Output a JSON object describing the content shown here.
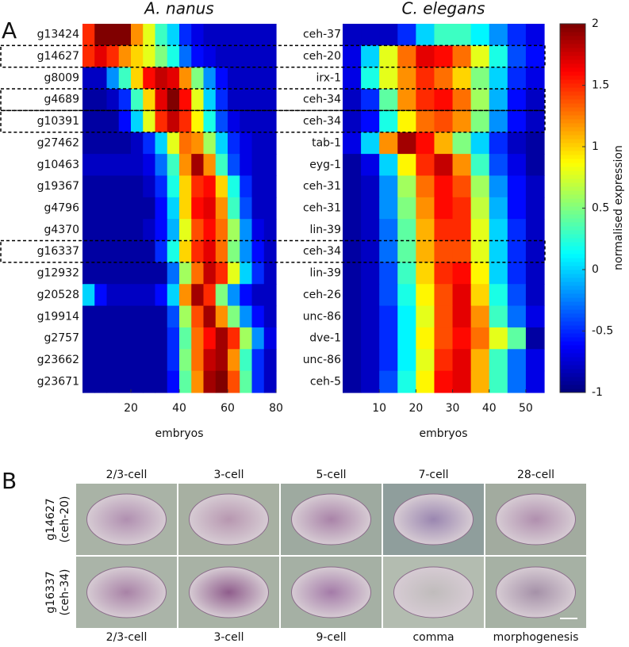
{
  "panel_labels": [
    "A",
    "B"
  ],
  "chart_data": [
    {
      "type": "heatmap",
      "title": "A. nanus",
      "xlabel": "embryos",
      "xlim": [
        0,
        80
      ],
      "xticks": [
        20,
        40,
        60,
        80
      ],
      "highlighted_rows": [
        1,
        3,
        4,
        10
      ],
      "rows": [
        "g13424",
        "g14627",
        "g8009",
        "g4689",
        "g10391",
        "g27462",
        "g10463",
        "g19367",
        "g4796",
        "g4370",
        "g16337",
        "g12932",
        "g20528",
        "g19914",
        "g2757",
        "g23662",
        "g23671"
      ],
      "values": [
        [
          1.5,
          2,
          2,
          2,
          1.2,
          0.8,
          0.3,
          0,
          -0.5,
          -0.7,
          -0.8,
          -0.8,
          -0.8,
          -0.8,
          -0.8,
          -0.8
        ],
        [
          1.5,
          1.7,
          1.5,
          1.2,
          1,
          0.8,
          0.5,
          0.2,
          -0.3,
          -0.6,
          -0.7,
          -0.8,
          -0.8,
          -0.8,
          -0.8,
          -0.8
        ],
        [
          -0.8,
          -0.8,
          -0.2,
          0.3,
          1,
          1.6,
          1.8,
          1.7,
          1.2,
          0.5,
          -0.2,
          -0.6,
          -0.8,
          -0.8,
          -0.8,
          -0.8
        ],
        [
          -0.9,
          -0.9,
          -0.8,
          -0.5,
          0.3,
          1,
          1.7,
          2,
          1.6,
          0.8,
          0,
          -0.5,
          -0.8,
          -0.8,
          -0.8,
          -0.8
        ],
        [
          -0.9,
          -0.9,
          -0.9,
          -0.6,
          0,
          0.8,
          1.5,
          1.8,
          1.5,
          0.9,
          0.2,
          -0.4,
          -0.7,
          -0.8,
          -0.8,
          -0.8
        ],
        [
          -0.9,
          -0.9,
          -0.9,
          -0.9,
          -0.8,
          -0.5,
          0,
          0.8,
          1.3,
          1.2,
          0.6,
          0,
          -0.5,
          -0.7,
          -0.8,
          -0.8
        ],
        [
          -0.8,
          -0.8,
          -0.8,
          -0.8,
          -0.8,
          -0.7,
          -0.3,
          0.3,
          1.2,
          1.9,
          1.2,
          0.3,
          -0.4,
          -0.7,
          -0.8,
          -0.8
        ],
        [
          -0.9,
          -0.9,
          -0.9,
          -0.9,
          -0.9,
          -0.8,
          -0.5,
          0.2,
          1,
          1.5,
          1.6,
          1,
          0.2,
          -0.5,
          -0.8,
          -0.8
        ],
        [
          -0.9,
          -0.9,
          -0.9,
          -0.9,
          -0.9,
          -0.9,
          -0.6,
          0,
          1,
          1.6,
          1.7,
          1.2,
          0.3,
          -0.4,
          -0.8,
          -0.8
        ],
        [
          -0.9,
          -0.9,
          -0.9,
          -0.9,
          -0.9,
          -0.8,
          -0.6,
          -0.1,
          0.8,
          1.4,
          1.6,
          1.3,
          0.6,
          -0.2,
          -0.7,
          -0.8
        ],
        [
          -0.9,
          -0.9,
          -0.9,
          -0.9,
          -0.9,
          -0.9,
          -0.5,
          0.2,
          1,
          1.5,
          1.7,
          1.3,
          0.5,
          -0.2,
          -0.6,
          -0.8
        ],
        [
          -0.9,
          -0.9,
          -0.9,
          -0.9,
          -0.9,
          -0.9,
          -0.9,
          -0.3,
          0.6,
          1.3,
          1.8,
          1.5,
          0.8,
          0,
          -0.5,
          -0.8
        ],
        [
          0,
          -0.6,
          -0.8,
          -0.8,
          -0.8,
          -0.8,
          -0.6,
          0,
          1.2,
          1.9,
          1.5,
          0.5,
          -0.2,
          -0.6,
          -0.8,
          -0.8
        ],
        [
          -0.9,
          -0.9,
          -0.9,
          -0.9,
          -0.9,
          -0.9,
          -0.9,
          -0.4,
          0.6,
          1.4,
          1.9,
          1.2,
          0.5,
          -0.2,
          -0.6,
          -0.8
        ],
        [
          -0.9,
          -0.9,
          -0.9,
          -0.9,
          -0.9,
          -0.9,
          -0.9,
          -0.5,
          0.4,
          1.3,
          1.6,
          1.9,
          1.5,
          0.6,
          -0.2,
          -0.7
        ],
        [
          -0.9,
          -0.9,
          -0.9,
          -0.9,
          -0.9,
          -0.9,
          -0.9,
          -0.5,
          0.5,
          1.3,
          1.8,
          1.9,
          1.2,
          0.3,
          -0.5,
          -0.8
        ],
        [
          -0.9,
          -0.9,
          -0.9,
          -0.9,
          -0.9,
          -0.9,
          -0.9,
          -0.6,
          0.4,
          1.2,
          1.9,
          2,
          1.4,
          0.4,
          -0.5,
          -0.8
        ]
      ]
    },
    {
      "type": "heatmap",
      "title": "C. elegans",
      "xlabel": "embryos",
      "xlim": [
        0,
        55
      ],
      "xticks": [
        10,
        20,
        30,
        40,
        50
      ],
      "highlighted_rows": [
        1,
        3,
        4,
        10
      ],
      "rows": [
        "ceh-37",
        "ceh-20",
        "irx-1",
        "ceh-34",
        "ceh-34",
        "tab-1",
        "eyg-1",
        "ceh-31",
        "ceh-31",
        "lin-39",
        "ceh-34",
        "lin-39",
        "ceh-26",
        "unc-86",
        "dve-1",
        "unc-86",
        "ceh-5"
      ],
      "values": [
        [
          -0.8,
          -0.8,
          -0.8,
          -0.5,
          0,
          0.3,
          0.3,
          0.1,
          -0.2,
          -0.5,
          -0.7
        ],
        [
          -0.7,
          0,
          0.8,
          1.3,
          1.7,
          1.6,
          1.3,
          0.8,
          0.2,
          -0.4,
          -0.6
        ],
        [
          -0.7,
          0.2,
          0.8,
          1.2,
          1.5,
          1.3,
          1,
          0.5,
          0,
          -0.5,
          -0.7
        ],
        [
          -0.8,
          -0.5,
          0.4,
          1.2,
          1.5,
          1.6,
          1.3,
          0.6,
          -0.1,
          -0.6,
          -0.8
        ],
        [
          -0.8,
          -0.6,
          0.2,
          0.9,
          1.3,
          1.4,
          1.2,
          0.5,
          -0.2,
          -0.6,
          -0.8
        ],
        [
          -0.7,
          0,
          1.2,
          1.9,
          1.6,
          1.1,
          0.5,
          0,
          -0.5,
          -0.8,
          -0.9
        ],
        [
          -0.9,
          -0.7,
          0,
          0.9,
          1.5,
          1.8,
          1.2,
          0.3,
          -0.4,
          -0.7,
          -0.9
        ],
        [
          -0.9,
          -0.8,
          -0.2,
          0.6,
          1.3,
          1.6,
          1.4,
          0.6,
          -0.2,
          -0.6,
          -0.8
        ],
        [
          -0.9,
          -0.8,
          -0.2,
          0.5,
          1.2,
          1.6,
          1.5,
          0.7,
          -0.1,
          -0.6,
          -0.8
        ],
        [
          -0.9,
          -0.8,
          -0.3,
          0.4,
          1.1,
          1.5,
          1.5,
          0.8,
          0,
          -0.5,
          -0.8
        ],
        [
          -0.9,
          -0.8,
          -0.3,
          0.4,
          1.1,
          1.4,
          1.4,
          0.8,
          0,
          -0.5,
          -0.8
        ],
        [
          -0.9,
          -0.8,
          -0.4,
          0.3,
          1,
          1.5,
          1.6,
          0.9,
          0,
          -0.5,
          -0.8
        ],
        [
          -0.9,
          -0.8,
          -0.4,
          0.2,
          0.9,
          1.4,
          1.7,
          1,
          0.2,
          -0.4,
          -0.8
        ],
        [
          -0.9,
          -0.8,
          -0.5,
          0.1,
          0.8,
          1.4,
          1.7,
          1.2,
          0.3,
          -0.3,
          -0.7
        ],
        [
          -0.9,
          -0.8,
          -0.5,
          0.1,
          0.9,
          1.4,
          1.6,
          1.3,
          0.8,
          0.4,
          -0.9
        ],
        [
          -0.9,
          -0.8,
          -0.5,
          0.1,
          0.8,
          1.5,
          1.7,
          1.1,
          0.3,
          -0.3,
          -0.7
        ],
        [
          -0.9,
          -0.8,
          -0.4,
          0.2,
          0.9,
          1.6,
          1.7,
          1.1,
          0.3,
          -0.3,
          -0.7
        ]
      ]
    }
  ],
  "colorbar": {
    "label": "normalised expression",
    "clim": [
      -1,
      2
    ],
    "ticks": [
      -1,
      -0.5,
      0,
      0.5,
      1,
      1.5,
      2
    ]
  },
  "figure_b": {
    "top_labels": [
      "2/3-cell",
      "3-cell",
      "5-cell",
      "7-cell",
      "28-cell"
    ],
    "bottom_labels": [
      "2/3-cell",
      "3-cell",
      "9-cell",
      "comma",
      "morphogenesis"
    ],
    "row_labels": [
      [
        "g14627",
        "(ceh-20)"
      ],
      [
        "g16337",
        "(ceh-34)"
      ]
    ]
  }
}
